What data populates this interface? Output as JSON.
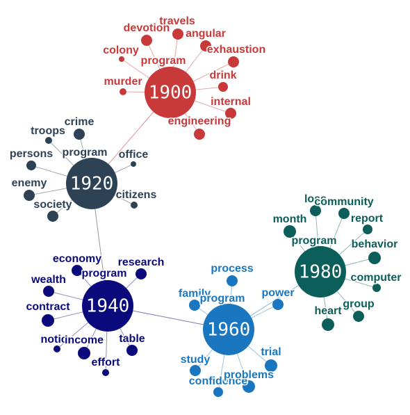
{
  "colors": {
    "c1900": "#c8393a",
    "c1920": "#2e4256",
    "c1940": "#0a0a7c",
    "c1960": "#1a76bf",
    "c1980": "#0b5e5a"
  },
  "hubs": [
    {
      "id": "1900",
      "label": "1900",
      "color": "#c8393a",
      "words": [
        "devotion",
        "travels",
        "angular",
        "colony",
        "program",
        "exhaustion",
        "murder",
        "drink",
        "internal",
        "engineering"
      ]
    },
    {
      "id": "1920",
      "label": "1920",
      "color": "#2e4256",
      "words": [
        "crime",
        "troops",
        "persons",
        "program",
        "office",
        "enemy",
        "citizens",
        "society"
      ]
    },
    {
      "id": "1940",
      "label": "1940",
      "color": "#0a0a7c",
      "words": [
        "economy",
        "research",
        "wealth",
        "program",
        "contract",
        "notice",
        "income",
        "table",
        "effort"
      ]
    },
    {
      "id": "1960",
      "label": "1960",
      "color": "#1a76bf",
      "words": [
        "process",
        "family",
        "program",
        "power",
        "study",
        "trial",
        "confidence",
        "problems"
      ]
    },
    {
      "id": "1980",
      "label": "1980",
      "color": "#0b5e5a",
      "words": [
        "loss",
        "community",
        "month",
        "report",
        "program",
        "behavior",
        "computer",
        "group",
        "heart"
      ]
    }
  ],
  "links": [
    [
      "1900",
      "1920"
    ],
    [
      "1920",
      "1940"
    ],
    [
      "1940",
      "1960"
    ],
    [
      "1960",
      "1980"
    ]
  ]
}
